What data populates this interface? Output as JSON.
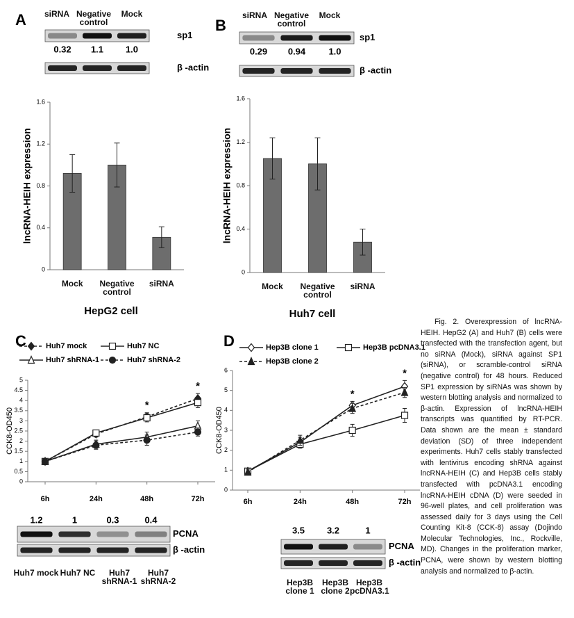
{
  "chart_data": [
    {
      "type": "bar",
      "panel": "A",
      "xlabel": "HepG2 cell",
      "ylabel": "lncRNA-HEIH expression",
      "categories": [
        "Mock",
        "Negative control",
        "siRNA"
      ],
      "values": [
        0.92,
        1.0,
        0.31
      ],
      "errors": [
        0.18,
        0.21,
        0.1
      ],
      "color": "#6d6d6d",
      "ylim": [
        0,
        1.6
      ],
      "yticks": [
        0,
        0.4,
        0.8,
        1.2,
        1.6
      ],
      "blot": {
        "lanes": [
          "siRNA",
          "Negative control",
          "Mock"
        ],
        "quantities": [
          0.32,
          1.1,
          1.0
        ],
        "quantity_labels": [
          "0.32",
          "1.1",
          "1.0"
        ],
        "rows": [
          "sp1",
          "β -actin"
        ]
      }
    },
    {
      "type": "bar",
      "panel": "B",
      "xlabel": "Huh7 cell",
      "ylabel": "lncRNA-HEIH expression",
      "categories": [
        "Mock",
        "Negative control",
        "siRNA"
      ],
      "values": [
        1.05,
        1.0,
        0.28
      ],
      "errors": [
        0.19,
        0.24,
        0.12
      ],
      "color": "#6d6d6d",
      "ylim": [
        0,
        1.6
      ],
      "yticks": [
        0,
        0.4,
        0.8,
        1.2,
        1.6
      ],
      "blot": {
        "lanes": [
          "siRNA",
          "Negative control",
          "Mock"
        ],
        "quantities": [
          0.29,
          0.94,
          1.0
        ],
        "quantity_labels": [
          "0.29",
          "0.94",
          "1.0"
        ],
        "rows": [
          "sp1",
          "β -actin"
        ]
      }
    },
    {
      "type": "line",
      "panel": "C",
      "ylabel": "CCK8-OD450",
      "categories": [
        "6h",
        "24h",
        "48h",
        "72h"
      ],
      "ylim": [
        0,
        5
      ],
      "yticks": [
        0,
        0.5,
        1,
        1.5,
        2,
        2.5,
        3,
        3.5,
        4,
        4.5,
        5
      ],
      "series": [
        {
          "name": "Huh7 mock",
          "color": "#222",
          "marker": "diamond",
          "filled": true,
          "dashed": true,
          "values": [
            1.0,
            2.35,
            3.2,
            4.1
          ],
          "errors": [
            0.1,
            0.15,
            0.2,
            0.25
          ]
        },
        {
          "name": "Huh7 NC",
          "color": "#222",
          "marker": "square",
          "filled": false,
          "dashed": false,
          "values": [
            1.0,
            2.4,
            3.15,
            3.9
          ],
          "errors": [
            0.08,
            0.12,
            0.2,
            0.25
          ]
        },
        {
          "name": "Huh7 shRNA-1",
          "color": "#222",
          "marker": "triangle",
          "filled": false,
          "dashed": false,
          "values": [
            1.0,
            1.85,
            2.2,
            2.75
          ],
          "errors": [
            0.1,
            0.2,
            0.25,
            0.25
          ]
        },
        {
          "name": "Huh7 shRNA-2",
          "color": "#222",
          "marker": "circle",
          "filled": true,
          "dashed": true,
          "values": [
            1.0,
            1.8,
            2.05,
            2.45
          ],
          "errors": [
            0.08,
            0.2,
            0.25,
            0.2
          ]
        }
      ],
      "annotations": [
        {
          "text": "*",
          "category": 2
        },
        {
          "text": "*",
          "category": 3
        }
      ],
      "blot": {
        "lanes": [
          "Huh7 mock",
          "Huh7 NC",
          "Huh7 shRNA-1",
          "Huh7 shRNA-2"
        ],
        "quantities": [
          1.2,
          1,
          0.3,
          0.4
        ],
        "quantity_labels": [
          "1.2",
          "1",
          "0.3",
          "0.4"
        ],
        "rows": [
          "PCNA",
          "β -actin"
        ]
      }
    },
    {
      "type": "line",
      "panel": "D",
      "ylabel": "CCK8-OD450",
      "categories": [
        "6h",
        "24h",
        "48h",
        "72h"
      ],
      "ylim": [
        0,
        6
      ],
      "yticks": [
        0,
        1,
        2,
        3,
        4,
        5,
        6
      ],
      "series": [
        {
          "name": "Hep3B clone 1",
          "color": "#222",
          "marker": "diamond",
          "filled": false,
          "dashed": false,
          "values": [
            0.95,
            2.4,
            4.25,
            5.2
          ],
          "errors": [
            0.15,
            0.25,
            0.2,
            0.3
          ]
        },
        {
          "name": "Hep3B pcDNA3.1",
          "color": "#222",
          "marker": "square",
          "filled": false,
          "dashed": false,
          "values": [
            0.95,
            2.3,
            3.0,
            3.75
          ],
          "errors": [
            0.15,
            0.2,
            0.3,
            0.35
          ]
        },
        {
          "name": "Hep3B clone 2",
          "color": "#222",
          "marker": "triangle",
          "filled": true,
          "dashed": true,
          "values": [
            0.9,
            2.5,
            4.1,
            4.9
          ],
          "errors": [
            0.15,
            0.25,
            0.25,
            0.25
          ]
        }
      ],
      "annotations": [
        {
          "text": "*",
          "category": 2
        },
        {
          "text": "*",
          "category": 3
        }
      ],
      "blot": {
        "lanes": [
          "Hep3B clone 1",
          "Hep3B clone 2",
          "Hep3B pcDNA3.1"
        ],
        "quantities": [
          3.5,
          3.2,
          1
        ],
        "quantity_labels": [
          "3.5",
          "3.2",
          "1"
        ],
        "rows": [
          "PCNA",
          "β -actin"
        ]
      }
    }
  ],
  "caption": "Fig. 2. Overexpression of lncRNA-HEIH. HepG2 (A) and Huh7 (B) cells were transfected with the transfection agent, but no siRNA (Mock), siRNA against SP1 (siRNA), or scramble-control siRNA (negative control) for 48 hours. Reduced SP1 expression by siRNAs was shown by western blotting analysis and normalized to β-actin. Expression of lncRNA-HEIH transcripts was quantified by RT-PCR. Data shown are the mean ± standard deviation (SD) of three independent experiments. Huh7 cells stably transfected with lentivirus encoding shRNA against lncRNA-HEIH (C) and Hep3B cells stably transfected with pcDNA3.1 encoding lncRNA-HEIH cDNA (D) were seeded in 96-well plates, and cell proliferation was assessed daily for 3 days using the Cell Counting Kit-8 (CCK-8) assay (Dojindo Molecular Technologies, Inc., Rockville, MD). Changes in the proliferation marker, PCNA, were shown by western blotting analysis and normalized to β-actin."
}
